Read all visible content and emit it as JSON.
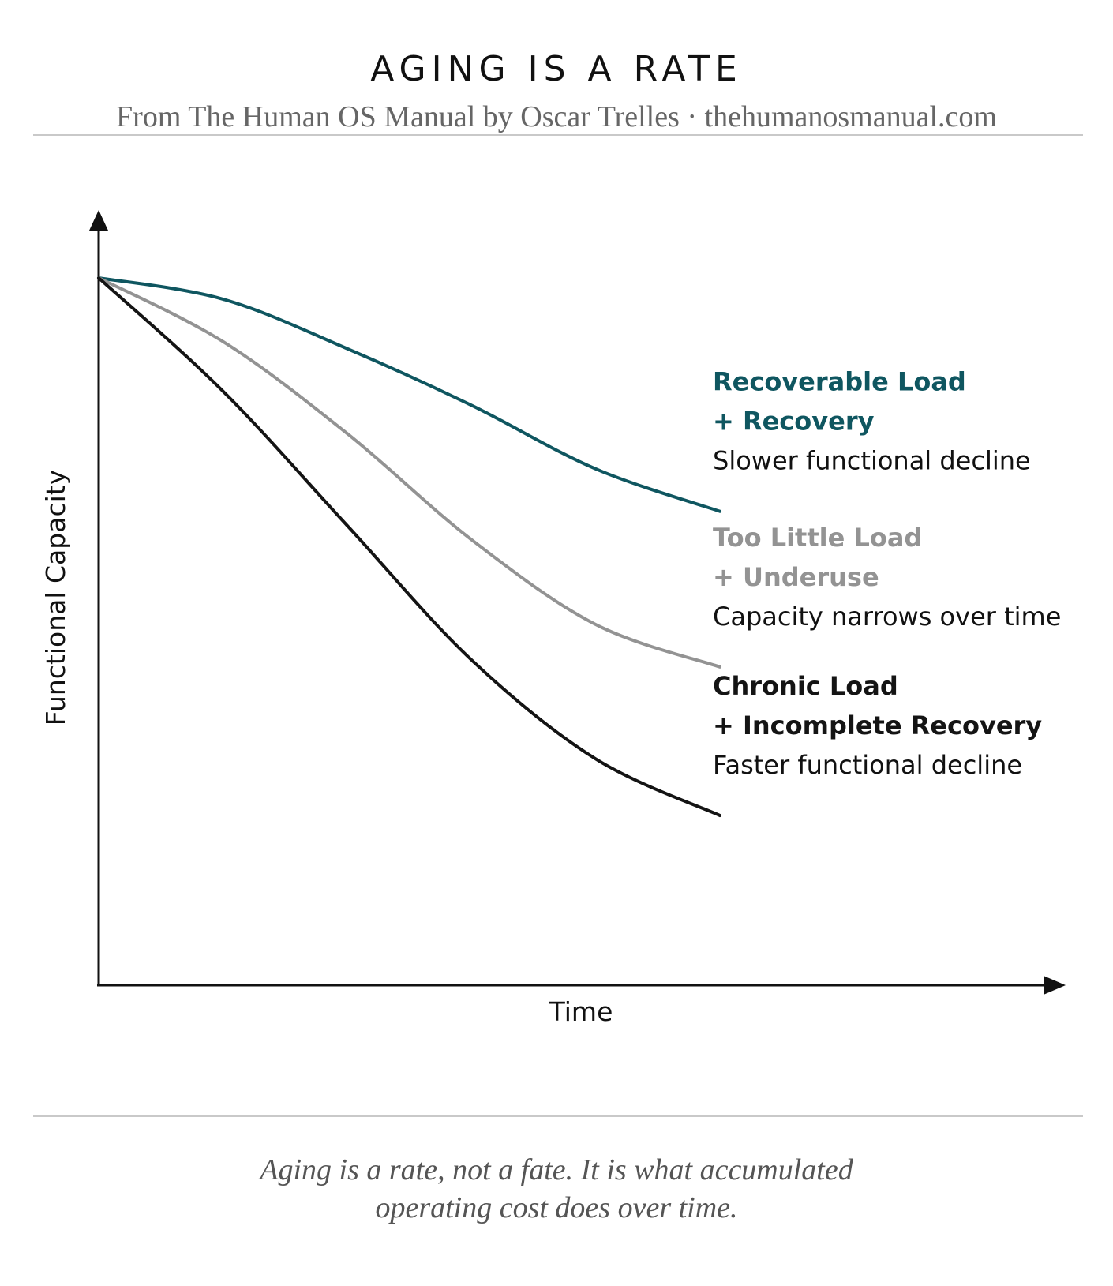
{
  "header": {
    "title": "AGING IS A RATE",
    "subtitle": "From The Human OS Manual by Oscar Trelles · thehumanosmanual.com"
  },
  "chart_data": {
    "type": "line",
    "xlabel": "Time",
    "ylabel": "Functional Capacity",
    "grid": false,
    "legend": "inline-right",
    "series": [
      {
        "name": "Recoverable Load + Recovery",
        "label_lines": [
          "Recoverable Load",
          "+ Recovery"
        ],
        "description": "Slower functional decline",
        "color": "#0f5660",
        "x": [
          0,
          0.2,
          0.4,
          0.6,
          0.8,
          1.0
        ],
        "y": [
          1.0,
          0.97,
          0.9,
          0.82,
          0.73,
          0.67
        ]
      },
      {
        "name": "Too Little Load + Underuse",
        "label_lines": [
          "Too Little Load",
          "+ Underuse"
        ],
        "description": "Capacity narrows over time",
        "color": "#939393",
        "x": [
          0,
          0.2,
          0.4,
          0.6,
          0.8,
          1.0
        ],
        "y": [
          1.0,
          0.91,
          0.78,
          0.63,
          0.51,
          0.45
        ]
      },
      {
        "name": "Chronic Load + Incomplete Recovery",
        "label_lines": [
          "Chronic Load",
          "+ Incomplete Recovery"
        ],
        "description": "Faster functional decline",
        "color": "#141414",
        "x": [
          0,
          0.2,
          0.4,
          0.6,
          0.8,
          1.0
        ],
        "y": [
          1.0,
          0.84,
          0.65,
          0.46,
          0.32,
          0.24
        ]
      }
    ]
  },
  "caption": {
    "line1": "Aging is a rate, not a fate. It is what accumulated",
    "line2": "operating cost does over time."
  }
}
